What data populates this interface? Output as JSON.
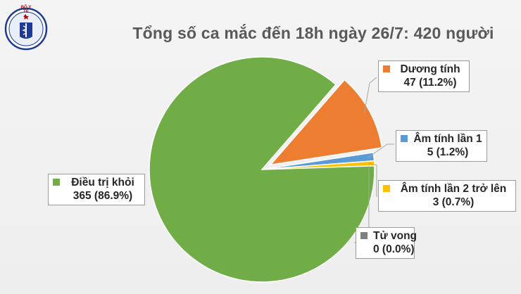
{
  "header": {
    "logo_name": "ministry-of-health-seal",
    "logo_text": "BỘ Y TẾ"
  },
  "chart_data": {
    "type": "pie",
    "title": "Tổng số ca mắc đến 18h ngày 26/7: 420 người",
    "total": 420,
    "start_angle_deg": -49,
    "exploded_slice": 0,
    "slices": [
      {
        "label": "Dương tính",
        "value": 47,
        "value_label": "47 (11.2%)",
        "color": "#ed7d31"
      },
      {
        "label": "Âm tính lần 1",
        "value": 5,
        "value_label": "5 (1.2%)",
        "color": "#5b9bd5"
      },
      {
        "label": "Âm tính lần 2 trở lên",
        "value": 3,
        "value_label": "3 (0.7%)",
        "color": "#ffc000"
      },
      {
        "label": "Tử vong",
        "value": 0,
        "value_label": "0 (0.0%)",
        "color": "#7f7f7f"
      },
      {
        "label": "Điều trị khỏi",
        "value": 365,
        "value_label": "365 (86.9%)",
        "color": "#70ad47"
      }
    ]
  }
}
